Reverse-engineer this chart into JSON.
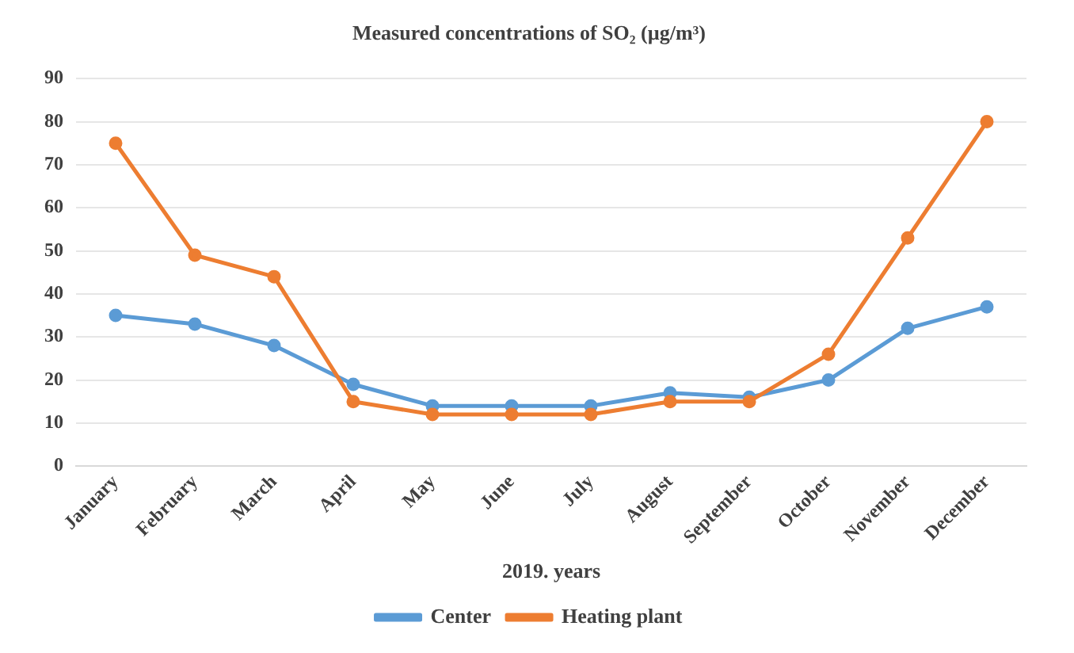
{
  "chart_data": {
    "type": "line",
    "title": "Measured concentrations of SO₂ (µg/m³)",
    "xlabel": "2019. years",
    "categories": [
      "January",
      "February",
      "March",
      "April",
      "May",
      "June",
      "July",
      "August",
      "September",
      "October",
      "November",
      "December"
    ],
    "series": [
      {
        "name": "Center",
        "color": "#5b9bd5",
        "values": [
          35,
          33,
          28,
          19,
          14,
          14,
          14,
          17,
          16,
          20,
          32,
          37
        ]
      },
      {
        "name": "Heating plant",
        "color": "#ed7d31",
        "values": [
          75,
          49,
          44,
          15,
          12,
          12,
          12,
          15,
          15,
          26,
          53,
          80
        ]
      }
    ],
    "ylim": [
      0,
      90
    ],
    "yticks": [
      0,
      10,
      20,
      30,
      40,
      50,
      60,
      70,
      80,
      90
    ],
    "grid": "y",
    "legend": "bottom",
    "marker": "circle",
    "line_style": "solid"
  }
}
